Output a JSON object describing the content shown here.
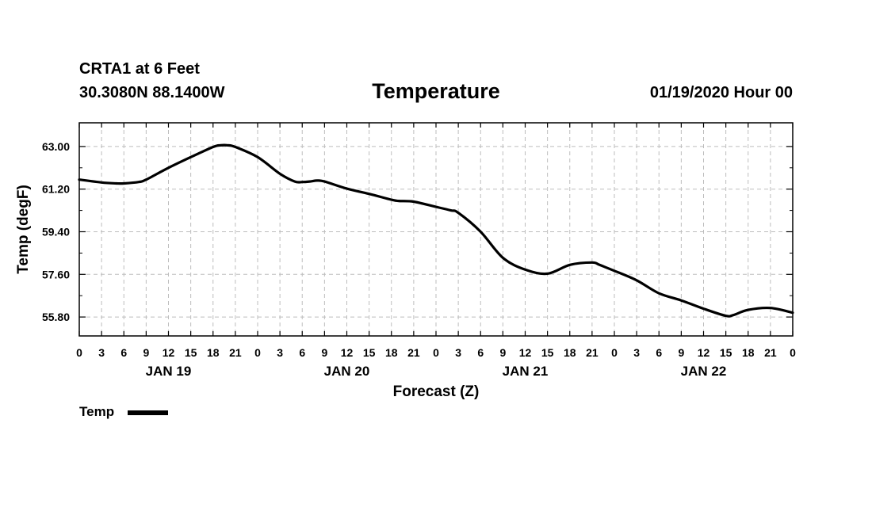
{
  "header": {
    "station": "CRTA1 at 6 Feet",
    "coords": "30.3080N 88.1400W",
    "title": "Temperature",
    "datetime": "01/19/2020 Hour 00"
  },
  "chart_data": {
    "type": "line",
    "title": "Temperature",
    "xlabel": "Forecast (Z)",
    "ylabel": "Temp (degF)",
    "xlim": [
      0,
      96
    ],
    "ylim": [
      55.0,
      64.0
    ],
    "yticks": [
      55.8,
      57.6,
      59.4,
      61.2,
      63.0
    ],
    "ytick_labels": [
      "55.80",
      "57.60",
      "59.40",
      "61.20",
      "63.00"
    ],
    "ytick_minor": [
      56.7,
      58.5,
      60.3,
      62.1
    ],
    "xticks": [
      0,
      3,
      6,
      9,
      12,
      15,
      18,
      21,
      24,
      27,
      30,
      33,
      36,
      39,
      42,
      45,
      48,
      51,
      54,
      57,
      60,
      63,
      66,
      69,
      72,
      75,
      78,
      81,
      84,
      87,
      90,
      93,
      96
    ],
    "xtick_labels": [
      "0",
      "3",
      "6",
      "9",
      "12",
      "15",
      "18",
      "21",
      "0",
      "3",
      "6",
      "9",
      "12",
      "15",
      "18",
      "21",
      "0",
      "3",
      "6",
      "9",
      "12",
      "15",
      "18",
      "21",
      "0",
      "3",
      "6",
      "9",
      "12",
      "15",
      "18",
      "21",
      "0"
    ],
    "day_labels": [
      {
        "label": "JAN 19",
        "x": 12
      },
      {
        "label": "JAN 20",
        "x": 36
      },
      {
        "label": "JAN 21",
        "x": 60
      },
      {
        "label": "JAN 22",
        "x": 84
      }
    ],
    "grid": true,
    "legend": [
      {
        "name": "Temp"
      }
    ],
    "series": [
      {
        "name": "Temp",
        "color": "#000000",
        "x": [
          0,
          3,
          5,
          6,
          8,
          9,
          12,
          15,
          18,
          19,
          20,
          21,
          24,
          27,
          29,
          30,
          31,
          32,
          33,
          36,
          39,
          42,
          43,
          45,
          48,
          50,
          51,
          54,
          57,
          60,
          63,
          66,
          69,
          70,
          72,
          75,
          78,
          81,
          84,
          87,
          88,
          90,
          93,
          96
        ],
        "y": [
          61.6,
          61.48,
          61.44,
          61.44,
          61.5,
          61.6,
          62.1,
          62.55,
          62.98,
          63.05,
          63.05,
          62.98,
          62.55,
          61.85,
          61.52,
          61.5,
          61.52,
          61.56,
          61.52,
          61.22,
          61.0,
          60.75,
          60.7,
          60.67,
          60.45,
          60.3,
          60.2,
          59.4,
          58.3,
          57.8,
          57.63,
          58.0,
          58.1,
          58.0,
          57.75,
          57.35,
          56.8,
          56.5,
          56.15,
          55.85,
          55.88,
          56.1,
          56.18,
          55.98
        ]
      }
    ]
  }
}
